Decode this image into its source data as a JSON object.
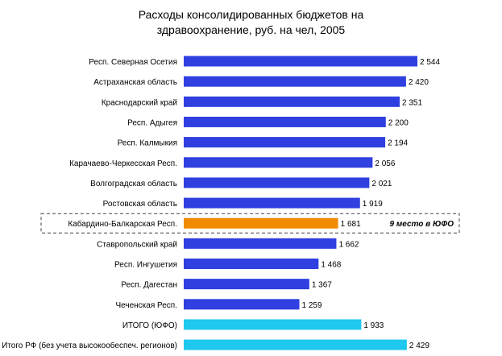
{
  "chart_data": {
    "type": "bar",
    "orientation": "horizontal",
    "title_lines": [
      "Расходы консолидированных бюджетов на",
      "здравоохранение, руб. на чел, 2005"
    ],
    "categories": [
      "Респ. Северная Осетия",
      "Астраханская область",
      "Краснодарский край",
      "Респ. Адыгея",
      "Респ. Калмыкия",
      "Карачаево-Черкесская Респ.",
      "Волгоградская область",
      "Ростовская область",
      "Кабардино-Балкарская Респ.",
      "Ставропольский край",
      "Респ. Ингушетия",
      "Респ. Дагестан",
      "Чеченская Респ.",
      "ИТОГО (ЮФО)",
      "Итого РФ (без учета высокообеспеч. регионов)"
    ],
    "values": [
      2544,
      2420,
      2351,
      2200,
      2194,
      2056,
      2021,
      1919,
      1681,
      1662,
      1468,
      1367,
      1259,
      1933,
      2429
    ],
    "value_labels": [
      "2 544",
      "2 420",
      "2 351",
      "2 200",
      "2 194",
      "2 056",
      "2 021",
      "1 919",
      "1 681",
      "1 662",
      "1 468",
      "1 367",
      "1 259",
      "1 933",
      "2 429"
    ],
    "bar_kinds": [
      "region",
      "region",
      "region",
      "region",
      "region",
      "region",
      "region",
      "region",
      "highlight",
      "region",
      "region",
      "region",
      "region",
      "total",
      "total"
    ],
    "highlight_index": 8,
    "annotation": "9 место в ЮФО",
    "xlim": [
      0,
      2544
    ],
    "grid": false,
    "colors": {
      "region": "#2f3fe0",
      "highlight": "#f08a00",
      "total": "#1ec8ee",
      "highlight_box": "#444444"
    }
  }
}
